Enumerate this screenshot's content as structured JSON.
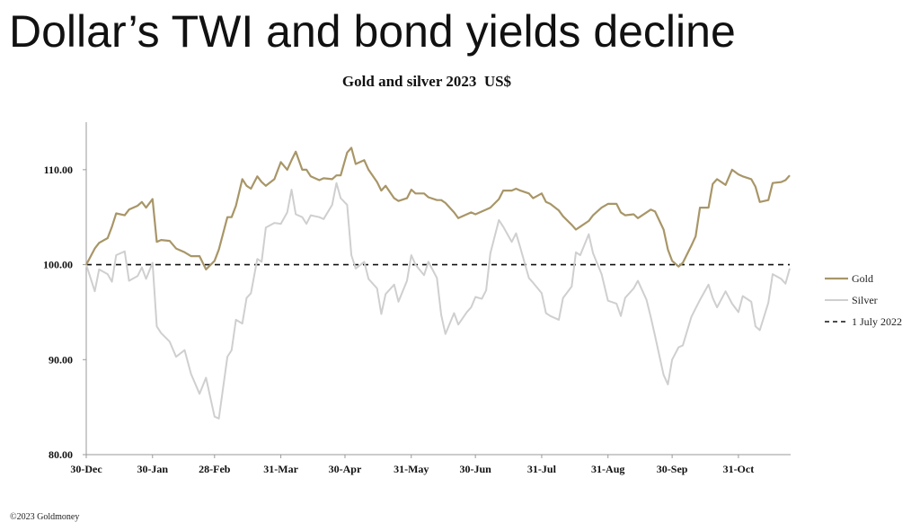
{
  "slide": {
    "title": "Dollar’s TWI and bond yields decline",
    "copyright": "©2023 Goldmoney"
  },
  "colors": {
    "gold": "#a89668",
    "silver": "#cfcfcf",
    "reference": "#111111",
    "axis": "#9a9a9a"
  },
  "chart_data": {
    "type": "line",
    "title": "Gold and silver 2023  US$",
    "xlabel": "",
    "ylabel": "",
    "ylim": [
      80,
      115
    ],
    "yticks": [
      "80.00",
      "90.00",
      "100.00",
      "110.00"
    ],
    "xticks": [
      "30-Dec",
      "30-Jan",
      "28-Feb",
      "31-Mar",
      "30-Apr",
      "31-May",
      "30-Jun",
      "31-Jul",
      "31-Aug",
      "30-Sep",
      "31-Oct"
    ],
    "grid": false,
    "legend_position": "right",
    "series": [
      {
        "name": "Gold",
        "style": "solid",
        "points": [
          [
            "30-Dec",
            100.0
          ],
          [
            "3-Jan",
            101.7
          ],
          [
            "5-Jan",
            102.3
          ],
          [
            "9-Jan",
            102.8
          ],
          [
            "11-Jan",
            104.0
          ],
          [
            "13-Jan",
            105.4
          ],
          [
            "17-Jan",
            105.2
          ],
          [
            "19-Jan",
            105.8
          ],
          [
            "23-Jan",
            106.2
          ],
          [
            "25-Jan",
            106.6
          ],
          [
            "27-Jan",
            106.0
          ],
          [
            "30-Jan",
            106.9
          ],
          [
            "1-Feb",
            102.4
          ],
          [
            "3-Feb",
            102.6
          ],
          [
            "7-Feb",
            102.5
          ],
          [
            "10-Feb",
            101.7
          ],
          [
            "14-Feb",
            101.3
          ],
          [
            "17-Feb",
            100.9
          ],
          [
            "21-Feb",
            100.9
          ],
          [
            "24-Feb",
            99.5
          ],
          [
            "28-Feb",
            100.4
          ],
          [
            "2-Mar",
            101.6
          ],
          [
            "6-Mar",
            105.0
          ],
          [
            "8-Mar",
            105.0
          ],
          [
            "10-Mar",
            106.2
          ],
          [
            "13-Mar",
            109.0
          ],
          [
            "15-Mar",
            108.3
          ],
          [
            "17-Mar",
            108.0
          ],
          [
            "20-Mar",
            109.3
          ],
          [
            "22-Mar",
            108.7
          ],
          [
            "24-Mar",
            108.3
          ],
          [
            "28-Mar",
            109.0
          ],
          [
            "31-Mar",
            110.8
          ],
          [
            "3-Apr",
            110.0
          ],
          [
            "5-Apr",
            111.0
          ],
          [
            "7-Apr",
            111.9
          ],
          [
            "10-Apr",
            110.0
          ],
          [
            "12-Apr",
            110.0
          ],
          [
            "14-Apr",
            109.3
          ],
          [
            "18-Apr",
            108.9
          ],
          [
            "20-Apr",
            109.1
          ],
          [
            "24-Apr",
            109.0
          ],
          [
            "26-Apr",
            109.4
          ],
          [
            "28-Apr",
            109.4
          ],
          [
            "1-May",
            111.8
          ],
          [
            "3-May",
            112.3
          ],
          [
            "5-May",
            110.6
          ],
          [
            "9-May",
            111.0
          ],
          [
            "11-May",
            110.0
          ],
          [
            "15-May",
            108.7
          ],
          [
            "17-May",
            107.8
          ],
          [
            "19-May",
            108.3
          ],
          [
            "23-May",
            107.0
          ],
          [
            "25-May",
            106.7
          ],
          [
            "29-May",
            107.0
          ],
          [
            "31-May",
            107.9
          ],
          [
            "2-Jun",
            107.5
          ],
          [
            "6-Jun",
            107.5
          ],
          [
            "8-Jun",
            107.1
          ],
          [
            "12-Jun",
            106.8
          ],
          [
            "14-Jun",
            106.8
          ],
          [
            "16-Jun",
            106.5
          ],
          [
            "20-Jun",
            105.5
          ],
          [
            "22-Jun",
            104.9
          ],
          [
            "26-Jun",
            105.3
          ],
          [
            "28-Jun",
            105.5
          ],
          [
            "30-Jun",
            105.3
          ],
          [
            "3-Jul",
            105.6
          ],
          [
            "5-Jul",
            105.8
          ],
          [
            "7-Jul",
            106.0
          ],
          [
            "11-Jul",
            106.9
          ],
          [
            "13-Jul",
            107.8
          ],
          [
            "17-Jul",
            107.8
          ],
          [
            "19-Jul",
            108.0
          ],
          [
            "21-Jul",
            107.8
          ],
          [
            "25-Jul",
            107.5
          ],
          [
            "27-Jul",
            107.0
          ],
          [
            "31-Jul",
            107.5
          ],
          [
            "2-Aug",
            106.6
          ],
          [
            "4-Aug",
            106.4
          ],
          [
            "8-Aug",
            105.7
          ],
          [
            "10-Aug",
            105.1
          ],
          [
            "14-Aug",
            104.2
          ],
          [
            "16-Aug",
            103.7
          ],
          [
            "18-Aug",
            104.0
          ],
          [
            "22-Aug",
            104.6
          ],
          [
            "24-Aug",
            105.2
          ],
          [
            "28-Aug",
            106.0
          ],
          [
            "31-Aug",
            106.4
          ],
          [
            "4-Sep",
            106.4
          ],
          [
            "6-Sep",
            105.5
          ],
          [
            "8-Sep",
            105.2
          ],
          [
            "12-Sep",
            105.3
          ],
          [
            "14-Sep",
            104.9
          ],
          [
            "18-Sep",
            105.5
          ],
          [
            "20-Sep",
            105.8
          ],
          [
            "22-Sep",
            105.6
          ],
          [
            "26-Sep",
            103.7
          ],
          [
            "28-Sep",
            101.6
          ],
          [
            "30-Sep",
            100.4
          ],
          [
            "3-Oct",
            99.8
          ],
          [
            "5-Oct",
            100.2
          ],
          [
            "9-Oct",
            102.0
          ],
          [
            "11-Oct",
            103.0
          ],
          [
            "13-Oct",
            106.0
          ],
          [
            "17-Oct",
            106.0
          ],
          [
            "19-Oct",
            108.5
          ],
          [
            "21-Oct",
            109.0
          ],
          [
            "25-Oct",
            108.4
          ],
          [
            "28-Oct",
            110.0
          ],
          [
            "31-Oct",
            109.5
          ],
          [
            "2-Nov",
            109.3
          ],
          [
            "6-Nov",
            109.0
          ],
          [
            "8-Nov",
            108.2
          ],
          [
            "10-Nov",
            106.6
          ],
          [
            "14-Nov",
            106.8
          ],
          [
            "16-Nov",
            108.6
          ],
          [
            "20-Nov",
            108.7
          ],
          [
            "22-Nov",
            108.9
          ],
          [
            "24-Nov",
            109.4
          ]
        ]
      },
      {
        "name": "Silver",
        "style": "solid",
        "points": [
          [
            "30-Dec",
            100.0
          ],
          [
            "3-Jan",
            97.2
          ],
          [
            "5-Jan",
            99.5
          ],
          [
            "9-Jan",
            99.0
          ],
          [
            "11-Jan",
            98.2
          ],
          [
            "13-Jan",
            101.0
          ],
          [
            "17-Jan",
            101.4
          ],
          [
            "19-Jan",
            98.3
          ],
          [
            "23-Jan",
            98.8
          ],
          [
            "25-Jan",
            99.7
          ],
          [
            "27-Jan",
            98.5
          ],
          [
            "30-Jan",
            100.2
          ],
          [
            "1-Feb",
            93.5
          ],
          [
            "3-Feb",
            92.8
          ],
          [
            "7-Feb",
            91.9
          ],
          [
            "10-Feb",
            90.3
          ],
          [
            "14-Feb",
            91.0
          ],
          [
            "17-Feb",
            88.5
          ],
          [
            "21-Feb",
            86.4
          ],
          [
            "24-Feb",
            88.1
          ],
          [
            "28-Feb",
            84.0
          ],
          [
            "2-Mar",
            83.8
          ],
          [
            "6-Mar",
            90.3
          ],
          [
            "8-Mar",
            91.0
          ],
          [
            "10-Mar",
            94.2
          ],
          [
            "13-Mar",
            93.8
          ],
          [
            "15-Mar",
            96.5
          ],
          [
            "17-Mar",
            97.0
          ],
          [
            "20-Mar",
            100.6
          ],
          [
            "22-Mar",
            100.3
          ],
          [
            "24-Mar",
            103.9
          ],
          [
            "28-Mar",
            104.4
          ],
          [
            "31-Mar",
            104.3
          ],
          [
            "3-Apr",
            105.5
          ],
          [
            "5-Apr",
            107.9
          ],
          [
            "7-Apr",
            105.3
          ],
          [
            "10-Apr",
            105.0
          ],
          [
            "12-Apr",
            104.3
          ],
          [
            "14-Apr",
            105.2
          ],
          [
            "18-Apr",
            105.0
          ],
          [
            "20-Apr",
            104.8
          ],
          [
            "24-Apr",
            106.3
          ],
          [
            "26-Apr",
            108.6
          ],
          [
            "28-Apr",
            107.0
          ],
          [
            "1-May",
            106.3
          ],
          [
            "3-May",
            101.0
          ],
          [
            "5-May",
            99.6
          ],
          [
            "9-May",
            100.3
          ],
          [
            "11-May",
            98.5
          ],
          [
            "15-May",
            97.5
          ],
          [
            "17-May",
            94.8
          ],
          [
            "19-May",
            96.9
          ],
          [
            "23-May",
            97.9
          ],
          [
            "25-May",
            96.1
          ],
          [
            "29-May",
            98.3
          ],
          [
            "31-May",
            101.0
          ],
          [
            "2-Jun",
            100.0
          ],
          [
            "6-Jun",
            98.9
          ],
          [
            "8-Jun",
            100.3
          ],
          [
            "12-Jun",
            98.6
          ],
          [
            "14-Jun",
            94.7
          ],
          [
            "16-Jun",
            92.7
          ],
          [
            "20-Jun",
            94.9
          ],
          [
            "22-Jun",
            93.7
          ],
          [
            "26-Jun",
            95.0
          ],
          [
            "28-Jun",
            95.5
          ],
          [
            "30-Jun",
            96.6
          ],
          [
            "3-Jul",
            96.4
          ],
          [
            "5-Jul",
            97.3
          ],
          [
            "7-Jul",
            101.2
          ],
          [
            "11-Jul",
            104.7
          ],
          [
            "13-Jul",
            104.0
          ],
          [
            "17-Jul",
            102.4
          ],
          [
            "19-Jul",
            103.3
          ],
          [
            "21-Jul",
            101.8
          ],
          [
            "25-Jul",
            98.6
          ],
          [
            "27-Jul",
            98.1
          ],
          [
            "31-Jul",
            97.0
          ],
          [
            "2-Aug",
            94.9
          ],
          [
            "4-Aug",
            94.6
          ],
          [
            "8-Aug",
            94.2
          ],
          [
            "10-Aug",
            96.5
          ],
          [
            "14-Aug",
            97.7
          ],
          [
            "16-Aug",
            101.3
          ],
          [
            "18-Aug",
            101.0
          ],
          [
            "22-Aug",
            103.2
          ],
          [
            "24-Aug",
            101.2
          ],
          [
            "28-Aug",
            99.0
          ],
          [
            "31-Aug",
            96.2
          ],
          [
            "4-Sep",
            95.9
          ],
          [
            "6-Sep",
            94.6
          ],
          [
            "8-Sep",
            96.5
          ],
          [
            "12-Sep",
            97.5
          ],
          [
            "14-Sep",
            98.3
          ],
          [
            "18-Sep",
            96.3
          ],
          [
            "20-Sep",
            94.5
          ],
          [
            "22-Sep",
            92.5
          ],
          [
            "26-Sep",
            88.4
          ],
          [
            "28-Sep",
            87.4
          ],
          [
            "30-Sep",
            90.0
          ],
          [
            "3-Oct",
            91.3
          ],
          [
            "5-Oct",
            91.5
          ],
          [
            "9-Oct",
            94.5
          ],
          [
            "11-Oct",
            95.4
          ],
          [
            "13-Oct",
            96.3
          ],
          [
            "17-Oct",
            97.9
          ],
          [
            "19-Oct",
            96.5
          ],
          [
            "21-Oct",
            95.5
          ],
          [
            "25-Oct",
            97.2
          ],
          [
            "28-Oct",
            95.9
          ],
          [
            "31-Oct",
            95.0
          ],
          [
            "2-Nov",
            96.7
          ],
          [
            "6-Nov",
            96.1
          ],
          [
            "8-Nov",
            93.5
          ],
          [
            "10-Nov",
            93.1
          ],
          [
            "14-Nov",
            96.0
          ],
          [
            "16-Nov",
            99.0
          ],
          [
            "20-Nov",
            98.5
          ],
          [
            "22-Nov",
            98.0
          ],
          [
            "24-Nov",
            99.6
          ]
        ]
      },
      {
        "name": "1 July 2022",
        "style": "dashed",
        "points": [
          [
            "30-Dec",
            100.0
          ],
          [
            "24-Nov",
            100.0
          ]
        ]
      }
    ]
  }
}
